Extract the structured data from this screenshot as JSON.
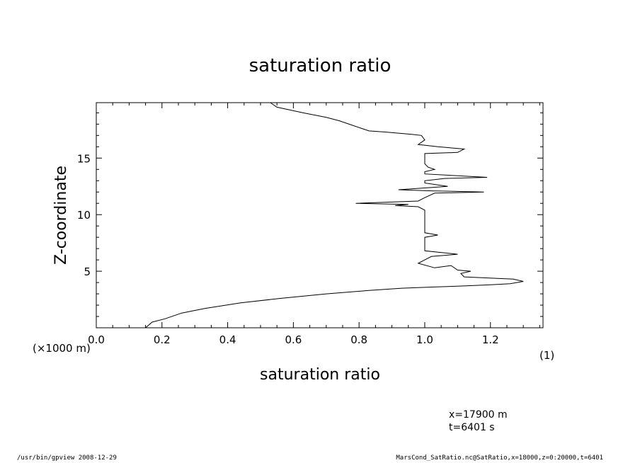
{
  "chart_data": {
    "type": "line",
    "title": "saturation ratio",
    "xlabel": "saturation ratio",
    "ylabel": "Z-coordinate",
    "x_units": "(1)",
    "y_units": "(×1000 m)",
    "xlim": [
      0.0,
      1.36
    ],
    "ylim": [
      0.0,
      19.9
    ],
    "x_ticks": [
      "0.0",
      "0.2",
      "0.4",
      "0.6",
      "0.8",
      "1.0",
      "1.2"
    ],
    "y_ticks": [
      "5",
      "10",
      "15"
    ],
    "grid": false,
    "series": [
      {
        "points": [
          [
            0.15,
            0.0
          ],
          [
            0.17,
            0.5
          ],
          [
            0.21,
            0.8
          ],
          [
            0.26,
            1.3
          ],
          [
            0.33,
            1.7
          ],
          [
            0.44,
            2.2
          ],
          [
            0.56,
            2.6
          ],
          [
            0.7,
            3.0
          ],
          [
            0.83,
            3.3
          ],
          [
            0.93,
            3.5
          ],
          [
            1.02,
            3.6
          ],
          [
            1.12,
            3.7
          ],
          [
            1.2,
            3.8
          ],
          [
            1.26,
            3.9
          ],
          [
            1.3,
            4.1
          ],
          [
            1.27,
            4.3
          ],
          [
            1.12,
            4.5
          ],
          [
            1.11,
            4.8
          ],
          [
            1.14,
            5.0
          ],
          [
            1.1,
            5.1
          ],
          [
            1.08,
            5.5
          ],
          [
            1.03,
            5.3
          ],
          [
            0.98,
            5.7
          ],
          [
            1.0,
            6.0
          ],
          [
            1.02,
            6.3
          ],
          [
            1.1,
            6.5
          ],
          [
            1.0,
            6.8
          ],
          [
            1.0,
            7.5
          ],
          [
            1.0,
            8.0
          ],
          [
            1.04,
            8.2
          ],
          [
            1.0,
            8.4
          ],
          [
            1.0,
            9.5
          ],
          [
            1.0,
            10.1
          ],
          [
            1.0,
            10.4
          ],
          [
            0.98,
            10.7
          ],
          [
            0.91,
            10.8
          ],
          [
            0.95,
            10.9
          ],
          [
            0.79,
            11.0
          ],
          [
            0.98,
            11.2
          ],
          [
            1.0,
            11.5
          ],
          [
            1.03,
            11.9
          ],
          [
            1.18,
            12.0
          ],
          [
            1.02,
            12.1
          ],
          [
            0.92,
            12.2
          ],
          [
            1.07,
            12.5
          ],
          [
            1.0,
            12.8
          ],
          [
            1.0,
            13.0
          ],
          [
            1.06,
            13.2
          ],
          [
            1.19,
            13.3
          ],
          [
            1.0,
            13.6
          ],
          [
            1.0,
            13.8
          ],
          [
            1.03,
            14.0
          ],
          [
            1.01,
            14.2
          ],
          [
            1.0,
            14.5
          ],
          [
            1.0,
            15.0
          ],
          [
            1.0,
            15.4
          ],
          [
            1.1,
            15.5
          ],
          [
            1.12,
            15.8
          ],
          [
            1.04,
            16.0
          ],
          [
            0.98,
            16.2
          ],
          [
            1.0,
            16.6
          ],
          [
            0.99,
            17.0
          ],
          [
            0.96,
            17.1
          ],
          [
            0.88,
            17.3
          ],
          [
            0.83,
            17.4
          ],
          [
            0.78,
            17.9
          ],
          [
            0.74,
            18.3
          ],
          [
            0.7,
            18.6
          ],
          [
            0.63,
            19.0
          ],
          [
            0.55,
            19.5
          ],
          [
            0.53,
            19.9
          ]
        ]
      }
    ]
  },
  "annotations": {
    "position": "x=17900 m",
    "time": "t=6401 s"
  },
  "footer": {
    "left": "/usr/bin/gpview  2008-12-29",
    "right": "MarsCond_SatRatio.nc@SatRatio,x=18000,z=0:20000,t=6401"
  }
}
